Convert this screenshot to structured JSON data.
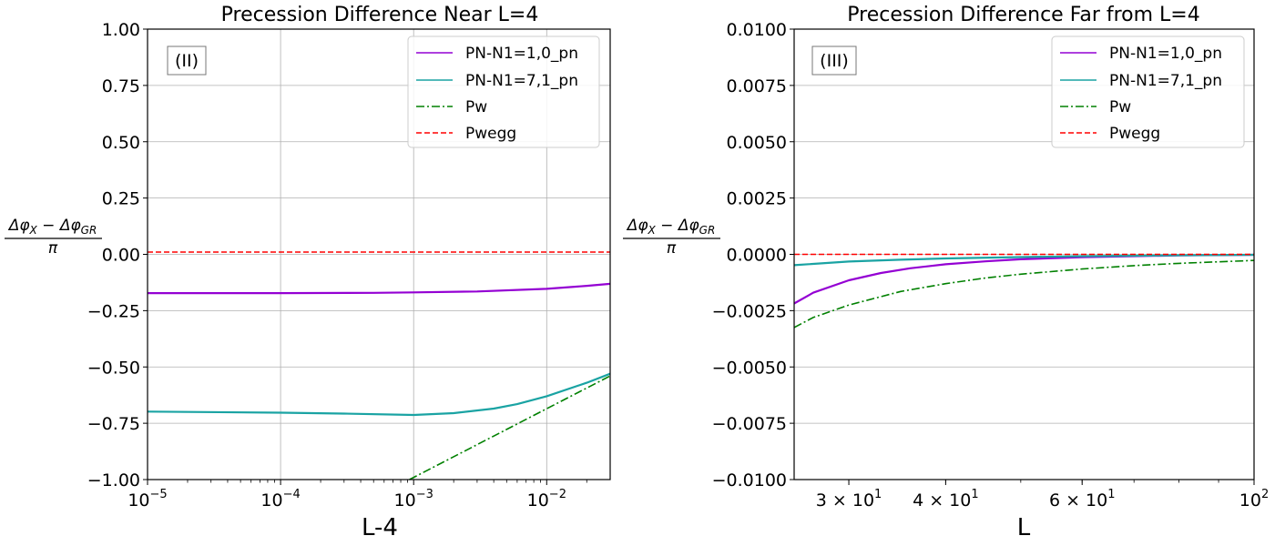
{
  "chart_data": [
    {
      "type": "line",
      "title": "Precession Difference Near L=4",
      "xlabel": "L-4",
      "ylabel": "(Δφ_X − Δφ_GR) / π",
      "panel_label": "(II)",
      "x_scale": "log",
      "xlim": [
        1e-05,
        0.03
      ],
      "ylim": [
        -1.0,
        1.0
      ],
      "grid": true,
      "legend_placement": "top-right",
      "x_ticks": [
        {
          "value": 1e-05,
          "base": "10",
          "exp": "−5"
        },
        {
          "value": 0.0001,
          "base": "10",
          "exp": "−4"
        },
        {
          "value": 0.001,
          "base": "10",
          "exp": "−3"
        },
        {
          "value": 0.01,
          "base": "10",
          "exp": "−2"
        }
      ],
      "y_ticks": [
        {
          "value": 1.0,
          "label": "1.00"
        },
        {
          "value": 0.75,
          "label": "0.75"
        },
        {
          "value": 0.5,
          "label": "0.50"
        },
        {
          "value": 0.25,
          "label": "0.25"
        },
        {
          "value": 0.0,
          "label": "0.00"
        },
        {
          "value": -0.25,
          "label": "−0.25"
        },
        {
          "value": -0.5,
          "label": "−0.50"
        },
        {
          "value": -0.75,
          "label": "−0.75"
        },
        {
          "value": -1.0,
          "label": "−1.00"
        }
      ],
      "series": [
        {
          "name": "PN-N1=1,0_pn",
          "color": "#9400d3",
          "style": "solid-marker",
          "x": [
            1e-05,
            0.0001,
            0.0005,
            0.001,
            0.003,
            0.01,
            0.02,
            0.03
          ],
          "y": [
            -0.172,
            -0.172,
            -0.171,
            -0.169,
            -0.165,
            -0.153,
            -0.14,
            -0.131
          ]
        },
        {
          "name": "PN-N1=7,1_pn",
          "color": "#1aa3a3",
          "style": "solid-marker",
          "x": [
            1e-05,
            0.0001,
            0.0003,
            0.001,
            0.002,
            0.004,
            0.006,
            0.01,
            0.02,
            0.03
          ],
          "y": [
            -0.698,
            -0.703,
            -0.707,
            -0.713,
            -0.705,
            -0.685,
            -0.665,
            -0.63,
            -0.57,
            -0.53
          ]
        },
        {
          "name": "Pw",
          "color": "#008000",
          "style": "dashdot",
          "x": [
            0.00093,
            0.03
          ],
          "y": [
            -1.0,
            -0.54
          ]
        },
        {
          "name": "Pwegg",
          "color": "#ff0000",
          "style": "dashed",
          "x": [
            1e-05,
            0.03
          ],
          "y": [
            0.01,
            0.01
          ]
        }
      ]
    },
    {
      "type": "line",
      "title": "Precession Difference Far from L=4",
      "xlabel": "L",
      "ylabel": "(Δφ_X − Δφ_GR) / π",
      "panel_label": "(III)",
      "x_scale": "log",
      "xlim": [
        25.5,
        100
      ],
      "ylim": [
        -0.01,
        0.01
      ],
      "grid": true,
      "grid_axis": "y",
      "legend_placement": "top-right",
      "x_ticks": [
        {
          "value": 30,
          "base": "3 × 10",
          "exp": "1"
        },
        {
          "value": 40,
          "base": "4 × 10",
          "exp": "1"
        },
        {
          "value": 60,
          "base": "6 × 10",
          "exp": "1"
        },
        {
          "value": 100,
          "base": "10",
          "exp": "2"
        }
      ],
      "y_ticks": [
        {
          "value": 0.01,
          "label": "0.0100"
        },
        {
          "value": 0.0075,
          "label": "0.0075"
        },
        {
          "value": 0.005,
          "label": "0.0050"
        },
        {
          "value": 0.0025,
          "label": "0.0025"
        },
        {
          "value": 0.0,
          "label": "0.0000"
        },
        {
          "value": -0.0025,
          "label": "−0.0025"
        },
        {
          "value": -0.005,
          "label": "−0.0050"
        },
        {
          "value": -0.0075,
          "label": "−0.0075"
        },
        {
          "value": -0.01,
          "label": "−0.0100"
        }
      ],
      "series": [
        {
          "name": "PN-N1=1,0_pn",
          "color": "#9400d3",
          "style": "solid-marker",
          "x": [
            25.5,
            27,
            30,
            33,
            36,
            40,
            45,
            50,
            60,
            70,
            80,
            100
          ],
          "y": [
            -0.00218,
            -0.0017,
            -0.00115,
            -0.00083,
            -0.00062,
            -0.00044,
            -0.00031,
            -0.00022,
            -0.00013,
            -8e-05,
            -5e-05,
            -2e-05
          ]
        },
        {
          "name": "PN-N1=7,1_pn",
          "color": "#1aa3a3",
          "style": "solid-marker",
          "x": [
            25.5,
            30,
            35,
            40,
            50,
            60,
            80,
            100
          ],
          "y": [
            -0.00048,
            -0.00032,
            -0.00024,
            -0.00018,
            -0.00012,
            -8e-05,
            -4e-05,
            -2e-05
          ]
        },
        {
          "name": "Pw",
          "color": "#008000",
          "style": "dashdot",
          "x": [
            25.5,
            27,
            30,
            35,
            40,
            45,
            50,
            60,
            70,
            80,
            90,
            100
          ],
          "y": [
            -0.00325,
            -0.0028,
            -0.00225,
            -0.00165,
            -0.0013,
            -0.00105,
            -0.00088,
            -0.00065,
            -0.0005,
            -0.0004,
            -0.00033,
            -0.00027
          ]
        },
        {
          "name": "Pwegg",
          "color": "#ff0000",
          "style": "dashed",
          "x": [
            25.5,
            100
          ],
          "y": [
            0.0,
            0.0
          ]
        }
      ]
    }
  ]
}
